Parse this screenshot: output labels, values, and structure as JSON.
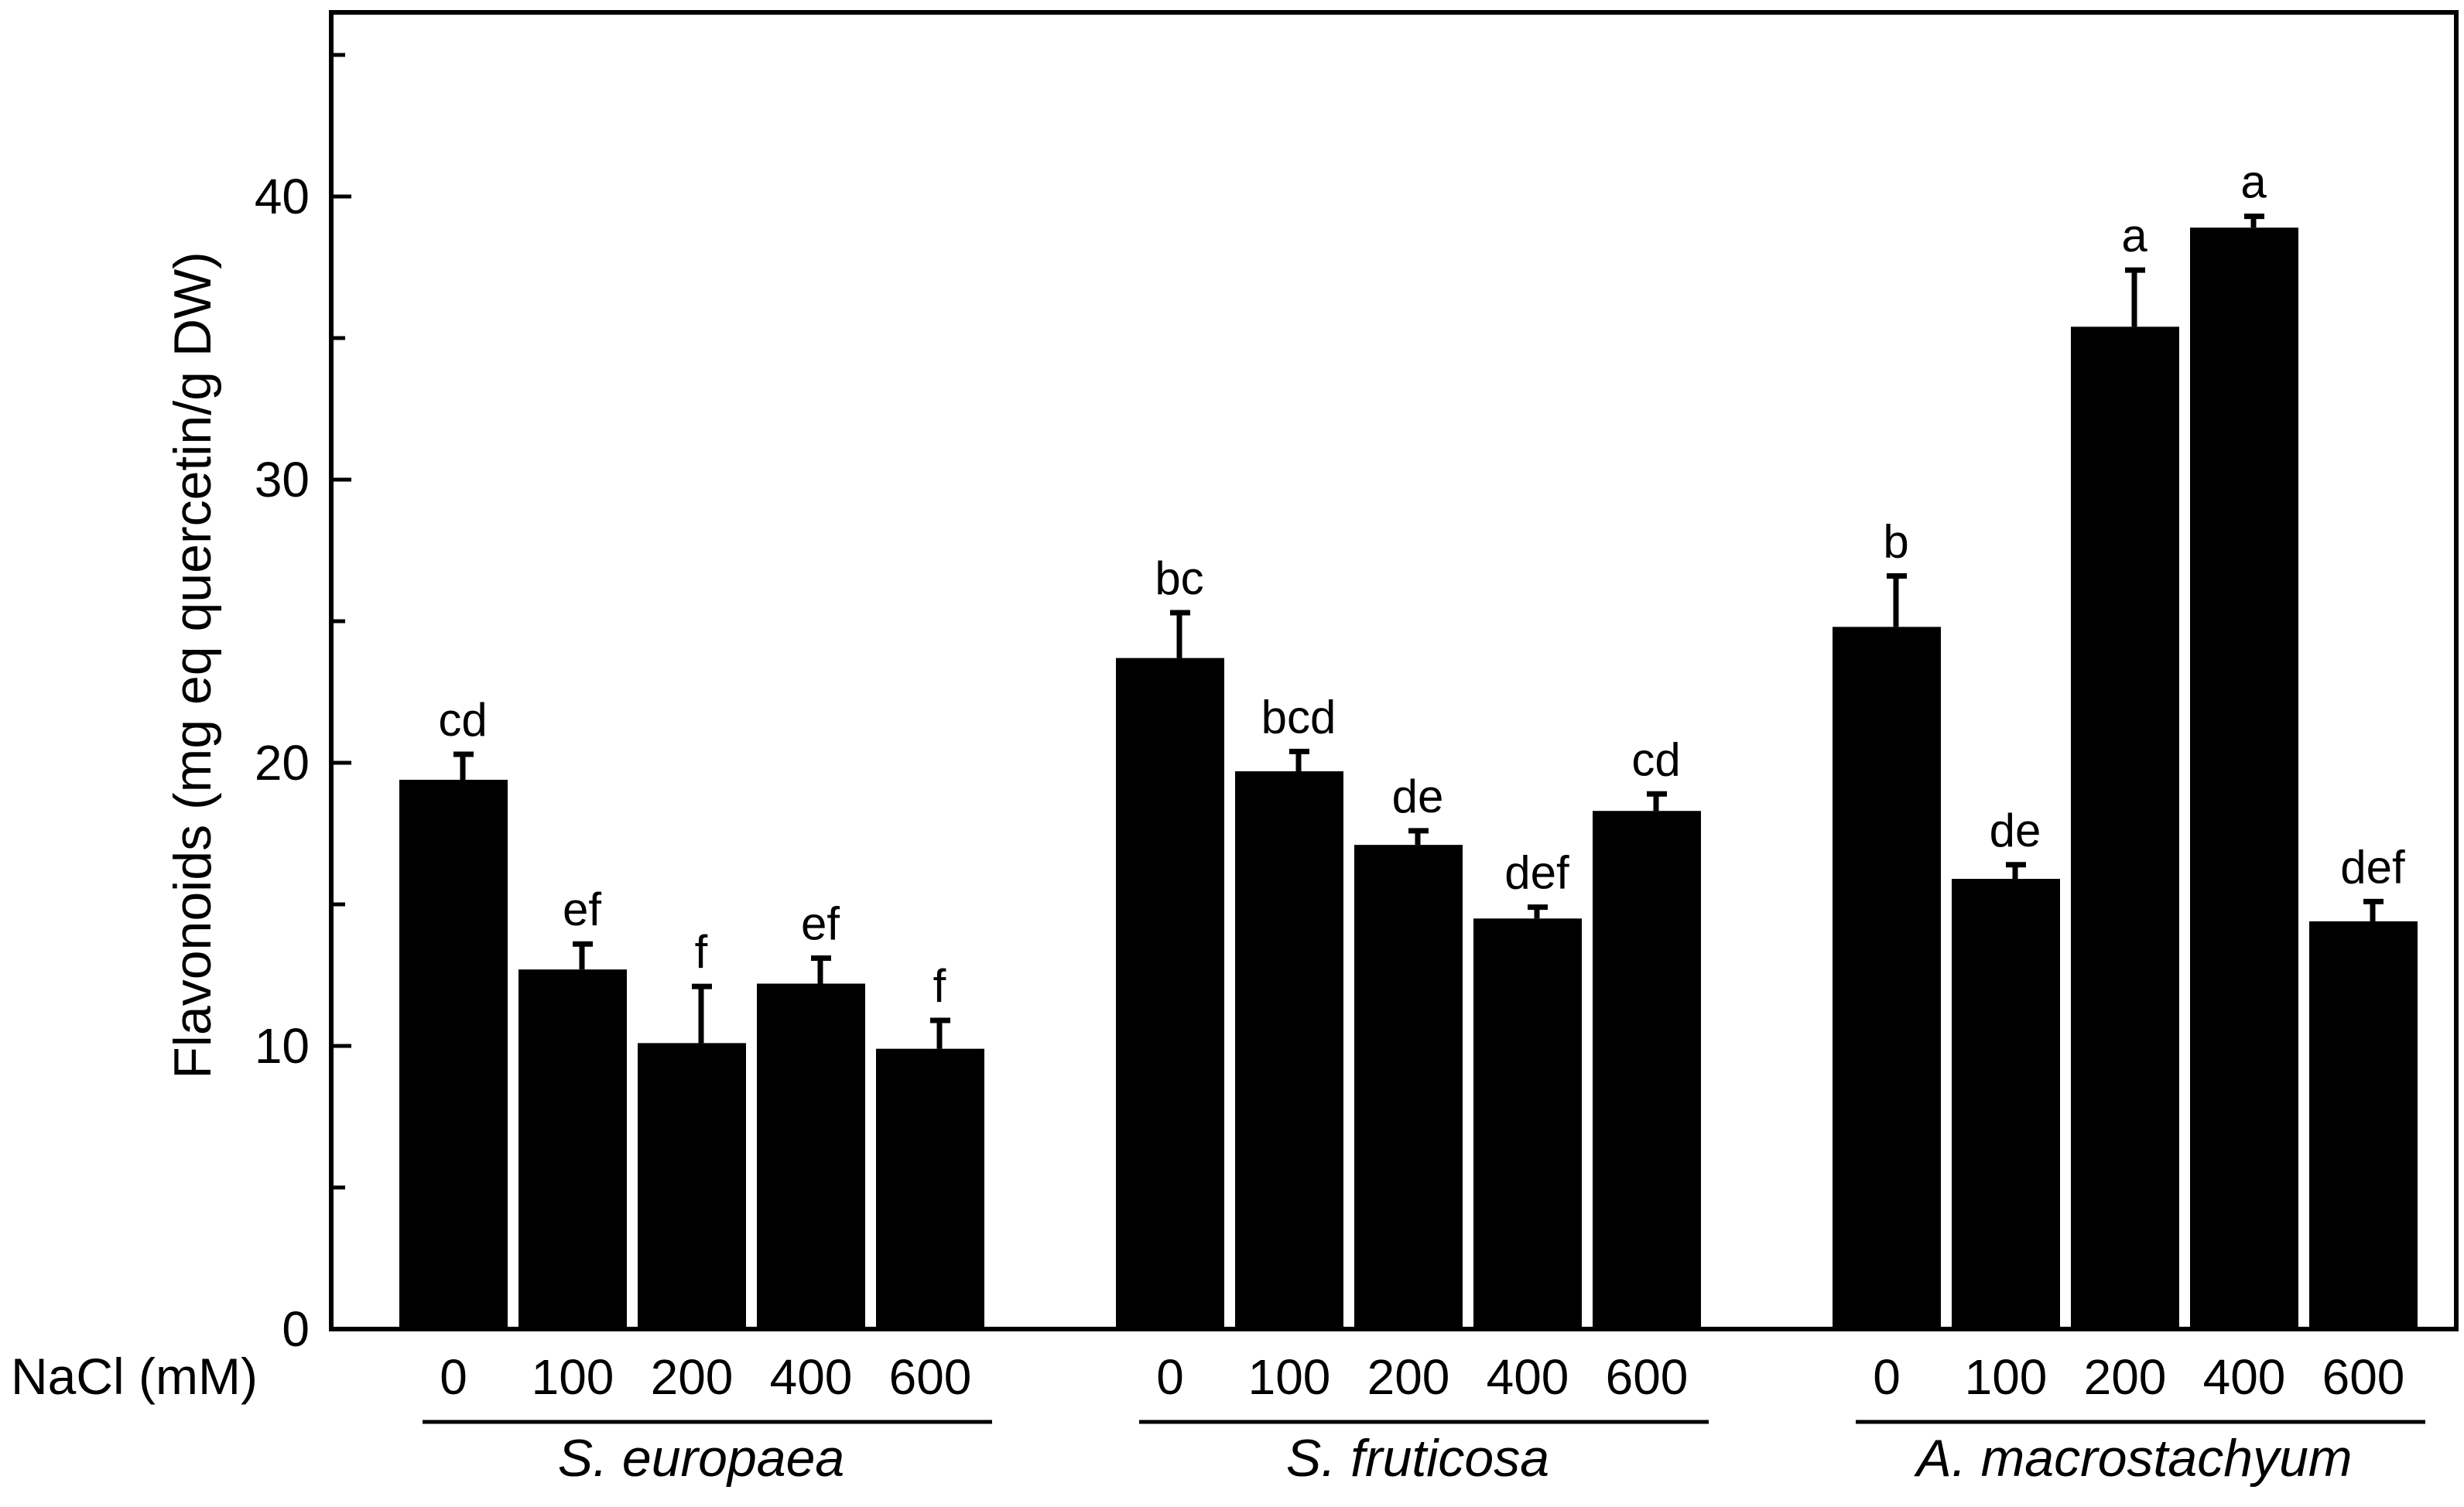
{
  "chart_data": {
    "type": "bar",
    "title": "",
    "xlabel": "NaCl (mM)",
    "ylabel": "Flavonoids (mg eq quercetin/g DW)",
    "ylim": [
      0,
      45
    ],
    "yticks": [
      0,
      10,
      20,
      30,
      40
    ],
    "grid": false,
    "legend": "none",
    "bar_color": "#000000",
    "groups": [
      {
        "name": "S. europaea",
        "categories": [
          "0",
          "100",
          "200",
          "400",
          "600"
        ],
        "values": [
          19.4,
          12.7,
          10.1,
          12.2,
          9.9
        ],
        "errors": [
          0.9,
          0.9,
          2.0,
          0.9,
          1.0
        ],
        "letters": [
          "cd",
          "ef",
          "f",
          "ef",
          "f"
        ]
      },
      {
        "name": "S. fruticosa",
        "categories": [
          "0",
          "100",
          "200",
          "400",
          "600"
        ],
        "values": [
          23.7,
          19.7,
          17.1,
          14.5,
          18.3
        ],
        "errors": [
          1.6,
          0.7,
          0.5,
          0.4,
          0.6
        ],
        "letters": [
          "bc",
          "bcd",
          "de",
          "def",
          "cd"
        ]
      },
      {
        "name": "A. macrostachyum",
        "categories": [
          "0",
          "100",
          "200",
          "400",
          "600"
        ],
        "values": [
          24.8,
          15.9,
          35.4,
          38.9,
          14.4
        ],
        "errors": [
          1.8,
          0.5,
          2.0,
          0.4,
          0.7
        ],
        "letters": [
          "b",
          "de",
          "a",
          "a",
          "def"
        ]
      }
    ]
  }
}
